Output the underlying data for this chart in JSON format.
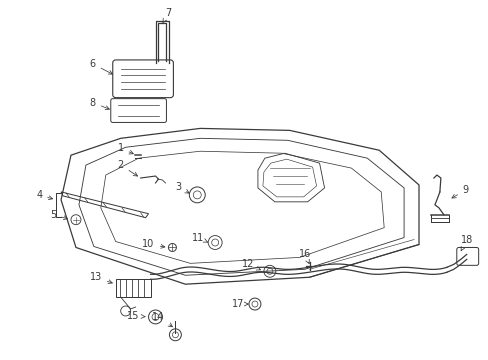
{
  "background_color": "#ffffff",
  "line_color": "#3a3a3a",
  "figsize": [
    4.89,
    3.6
  ],
  "dpi": 100
}
